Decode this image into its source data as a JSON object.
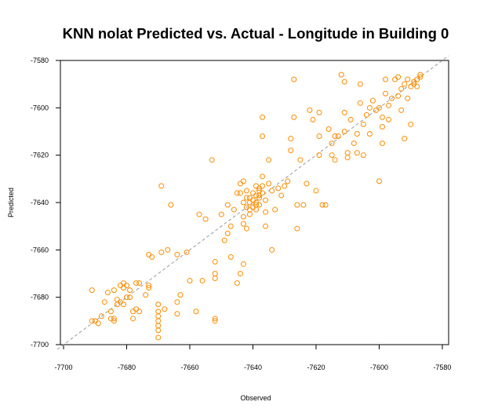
{
  "chart_data": {
    "type": "scatter",
    "title": "KNN nolat Predicted vs. Actual - Longitude in Building 0",
    "xlabel": "Observed",
    "ylabel": "Predicted",
    "xlim": [
      -7701,
      -7578
    ],
    "ylim": [
      -7700,
      -7580
    ],
    "x_ticks": [
      -7700,
      -7680,
      -7660,
      -7640,
      -7620,
      -7600,
      -7580
    ],
    "y_ticks": [
      -7580,
      -7600,
      -7620,
      -7640,
      -7660,
      -7680,
      -7700
    ],
    "reference_line": "y = x (dashed)",
    "grid": false,
    "legend": "none",
    "point_color": "#FF8C00",
    "ref_line_color": "#9a9a9a",
    "series": [
      {
        "points": [
          [
            -7691,
            -7677
          ],
          [
            -7691,
            -7690
          ],
          [
            -7690,
            -7690
          ],
          [
            -7689,
            -7691
          ],
          [
            -7688,
            -7688
          ],
          [
            -7687,
            -7682
          ],
          [
            -7686,
            -7678
          ],
          [
            -7685,
            -7686
          ],
          [
            -7685,
            -7689
          ],
          [
            -7684,
            -7690
          ],
          [
            -7684,
            -7689
          ],
          [
            -7684,
            -7677
          ],
          [
            -7683,
            -7683
          ],
          [
            -7683,
            -7681
          ],
          [
            -7682,
            -7675
          ],
          [
            -7682,
            -7682
          ],
          [
            -7681,
            -7683
          ],
          [
            -7681,
            -7676
          ],
          [
            -7681,
            -7674
          ],
          [
            -7680,
            -7680
          ],
          [
            -7680,
            -7675
          ],
          [
            -7679,
            -7677
          ],
          [
            -7679,
            -7680
          ],
          [
            -7678,
            -7686
          ],
          [
            -7678,
            -7689
          ],
          [
            -7677,
            -7685
          ],
          [
            -7677,
            -7674
          ],
          [
            -7676,
            -7674
          ],
          [
            -7676,
            -7686
          ],
          [
            -7674,
            -7679
          ],
          [
            -7673,
            -7675
          ],
          [
            -7673,
            -7676
          ],
          [
            -7673,
            -7662
          ],
          [
            -7672,
            -7663
          ],
          [
            -7670,
            -7697
          ],
          [
            -7670,
            -7683
          ],
          [
            -7670,
            -7686
          ],
          [
            -7670,
            -7688
          ],
          [
            -7670,
            -7690
          ],
          [
            -7670,
            -7692
          ],
          [
            -7670,
            -7694
          ],
          [
            -7669,
            -7661
          ],
          [
            -7669,
            -7633
          ],
          [
            -7668,
            -7685
          ],
          [
            -7667,
            -7660
          ],
          [
            -7666,
            -7641
          ],
          [
            -7664,
            -7662
          ],
          [
            -7664,
            -7682
          ],
          [
            -7664,
            -7687
          ],
          [
            -7663,
            -7679
          ],
          [
            -7661,
            -7661
          ],
          [
            -7660,
            -7673
          ],
          [
            -7658,
            -7686
          ],
          [
            -7657,
            -7645
          ],
          [
            -7656,
            -7673
          ],
          [
            -7655,
            -7647
          ],
          [
            -7653,
            -7622
          ],
          [
            -7652,
            -7665
          ],
          [
            -7652,
            -7672
          ],
          [
            -7652,
            -7689
          ],
          [
            -7652,
            -7690
          ],
          [
            -7652,
            -7670
          ],
          [
            -7650,
            -7645
          ],
          [
            -7649,
            -7656
          ],
          [
            -7648,
            -7653
          ],
          [
            -7648,
            -7641
          ],
          [
            -7647,
            -7650
          ],
          [
            -7647,
            -7663
          ],
          [
            -7646,
            -7643
          ],
          [
            -7645,
            -7674
          ],
          [
            -7644,
            -7670
          ],
          [
            -7643,
            -7646
          ],
          [
            -7643,
            -7649
          ],
          [
            -7643,
            -7666
          ],
          [
            -7642,
            -7642
          ],
          [
            -7642,
            -7638
          ],
          [
            -7642,
            -7651
          ],
          [
            -7641,
            -7640
          ],
          [
            -7641,
            -7645
          ],
          [
            -7640,
            -7639
          ],
          [
            -7640,
            -7636
          ],
          [
            -7639,
            -7633
          ],
          [
            -7639,
            -7640
          ],
          [
            -7639,
            -7643
          ],
          [
            -7638,
            -7637
          ],
          [
            -7638,
            -7634
          ],
          [
            -7638,
            -7641
          ],
          [
            -7637,
            -7629
          ],
          [
            -7637,
            -7612
          ],
          [
            -7637,
            -7604
          ],
          [
            -7636,
            -7644
          ],
          [
            -7636,
            -7650
          ],
          [
            -7635,
            -7622
          ],
          [
            -7634,
            -7635
          ],
          [
            -7634,
            -7660
          ],
          [
            -7633,
            -7643
          ],
          [
            -7632,
            -7634
          ],
          [
            -7631,
            -7637
          ],
          [
            -7630,
            -7633
          ],
          [
            -7629,
            -7631
          ],
          [
            -7628,
            -7613
          ],
          [
            -7628,
            -7618
          ],
          [
            -7627,
            -7604
          ],
          [
            -7627,
            -7588
          ],
          [
            -7626,
            -7641
          ],
          [
            -7626,
            -7651
          ],
          [
            -7625,
            -7622
          ],
          [
            -7624,
            -7641
          ],
          [
            -7623,
            -7632
          ],
          [
            -7622,
            -7601
          ],
          [
            -7621,
            -7605
          ],
          [
            -7620,
            -7635
          ],
          [
            -7619,
            -7620
          ],
          [
            -7619,
            -7612
          ],
          [
            -7619,
            -7602
          ],
          [
            -7618,
            -7641
          ],
          [
            -7617,
            -7641
          ],
          [
            -7616,
            -7609
          ],
          [
            -7615,
            -7615
          ],
          [
            -7615,
            -7620
          ],
          [
            -7614,
            -7622
          ],
          [
            -7614,
            -7612
          ],
          [
            -7613,
            -7612
          ],
          [
            -7612,
            -7586
          ],
          [
            -7611,
            -7589
          ],
          [
            -7611,
            -7602
          ],
          [
            -7611,
            -7610
          ],
          [
            -7610,
            -7619
          ],
          [
            -7610,
            -7621
          ],
          [
            -7609,
            -7605
          ],
          [
            -7608,
            -7615
          ],
          [
            -7607,
            -7611
          ],
          [
            -7607,
            -7619
          ],
          [
            -7606,
            -7590
          ],
          [
            -7606,
            -7598
          ],
          [
            -7605,
            -7607
          ],
          [
            -7605,
            -7620
          ],
          [
            -7604,
            -7603
          ],
          [
            -7603,
            -7600
          ],
          [
            -7603,
            -7611
          ],
          [
            -7602,
            -7597
          ],
          [
            -7601,
            -7601
          ],
          [
            -7600,
            -7631
          ],
          [
            -7600,
            -7600
          ],
          [
            -7599,
            -7608
          ],
          [
            -7599,
            -7615
          ],
          [
            -7599,
            -7604
          ],
          [
            -7598,
            -7588
          ],
          [
            -7598,
            -7594
          ],
          [
            -7597,
            -7599
          ],
          [
            -7597,
            -7605
          ],
          [
            -7596,
            -7596
          ],
          [
            -7595,
            -7588
          ],
          [
            -7594,
            -7587
          ],
          [
            -7594,
            -7595
          ],
          [
            -7593,
            -7592
          ],
          [
            -7593,
            -7601
          ],
          [
            -7592,
            -7613
          ],
          [
            -7592,
            -7590
          ],
          [
            -7591,
            -7588
          ],
          [
            -7591,
            -7596
          ],
          [
            -7590,
            -7591
          ],
          [
            -7590,
            -7607
          ],
          [
            -7589,
            -7590
          ],
          [
            -7589,
            -7589
          ],
          [
            -7588,
            -7588
          ],
          [
            -7588,
            -7591
          ],
          [
            -7587,
            -7587
          ],
          [
            -7587,
            -7586
          ],
          [
            -7645,
            -7636
          ],
          [
            -7644,
            -7632
          ],
          [
            -7643,
            -7640
          ],
          [
            -7641,
            -7643
          ],
          [
            -7640,
            -7642
          ],
          [
            -7639,
            -7637
          ],
          [
            -7638,
            -7635
          ],
          [
            -7637,
            -7636
          ],
          [
            -7636,
            -7639
          ],
          [
            -7635,
            -7632
          ],
          [
            -7644,
            -7636
          ],
          [
            -7643,
            -7631
          ],
          [
            -7642,
            -7635
          ],
          [
            -7641,
            -7638
          ],
          [
            -7639,
            -7641
          ],
          [
            -7638,
            -7638
          ],
          [
            -7637,
            -7633
          ]
        ]
      }
    ]
  }
}
